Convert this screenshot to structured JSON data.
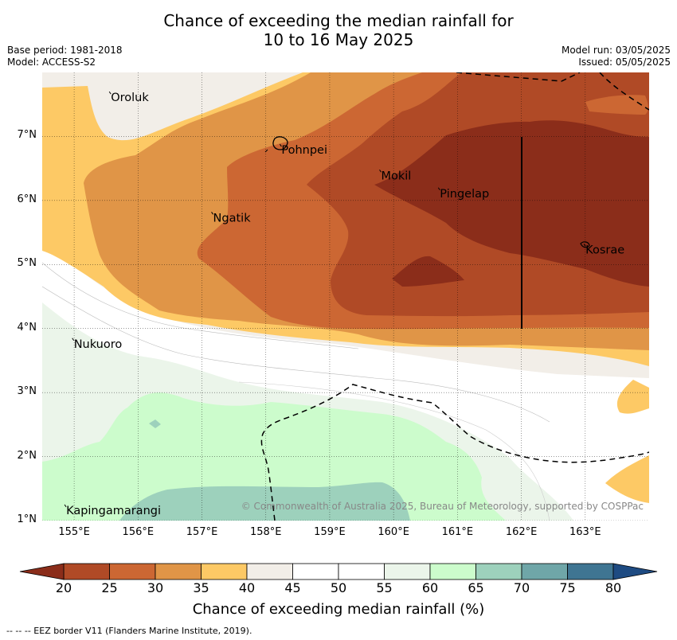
{
  "title": {
    "line1": "Chance of exceeding the median rainfall for",
    "line2": "10 to 16 May 2025"
  },
  "meta": {
    "base_period": "Base period: 1981-2018",
    "model": "Model: ACCESS-S2",
    "model_run": "Model run: 03/05/2025",
    "issued": "Issued: 05/05/2025"
  },
  "map": {
    "lon_range": [
      154.5,
      164.0
    ],
    "lat_range": [
      1.0,
      8.0
    ],
    "lon_ticks": [
      "155°E",
      "156°E",
      "157°E",
      "158°E",
      "159°E",
      "160°E",
      "161°E",
      "162°E",
      "163°E"
    ],
    "lat_ticks": [
      "7°N",
      "6°N",
      "5°N",
      "4°N",
      "3°N",
      "2°N",
      "1°N"
    ],
    "places": [
      {
        "id": "oroluk",
        "name": "Oroluk",
        "lon": 155.55,
        "lat": 7.7
      },
      {
        "id": "pohnpei",
        "name": "Pohnpei",
        "lon": 158.22,
        "lat": 6.88
      },
      {
        "id": "mokil",
        "name": "Mokil",
        "lon": 159.78,
        "lat": 6.48
      },
      {
        "id": "pingelap",
        "name": "Pingelap",
        "lon": 160.7,
        "lat": 6.2
      },
      {
        "id": "ngatik",
        "name": "Ngatik",
        "lon": 157.15,
        "lat": 5.82
      },
      {
        "id": "kosrae",
        "name": "Kosrae",
        "lon": 162.98,
        "lat": 5.32
      },
      {
        "id": "nukuoro",
        "name": "Nukuoro",
        "lon": 154.97,
        "lat": 3.85
      },
      {
        "id": "kapingamarangi",
        "name": "Kapingamarangi",
        "lon": 154.85,
        "lat": 1.25
      }
    ],
    "copyright": "© Commonwealth of Australia 2025, Bureau of Meteorology, supported by COSPPac"
  },
  "colorbar": {
    "ticks": [
      "20",
      "25",
      "30",
      "35",
      "40",
      "45",
      "50",
      "55",
      "60",
      "65",
      "70",
      "75",
      "80"
    ],
    "colors": {
      "lt20": "#8b2d1a",
      "b20_25": "#b04a26",
      "b25_30": "#cc6733",
      "b30_35": "#e09547",
      "b35_40": "#fdc965",
      "b40_45": "#f2eee8",
      "b45_55": "#ffffff",
      "b55_60": "#ebf5ea",
      "b60_65": "#ccfccc",
      "b65_70": "#9dd1bc",
      "b70_75": "#6fa6a8",
      "b75_80": "#3f7592",
      "gt80": "#1e4b82"
    },
    "label": "Chance of exceeding median rainfall (%)"
  },
  "footer": "--  --  -- EEZ border V11 (Flanders Marine Institute, 2019)."
}
